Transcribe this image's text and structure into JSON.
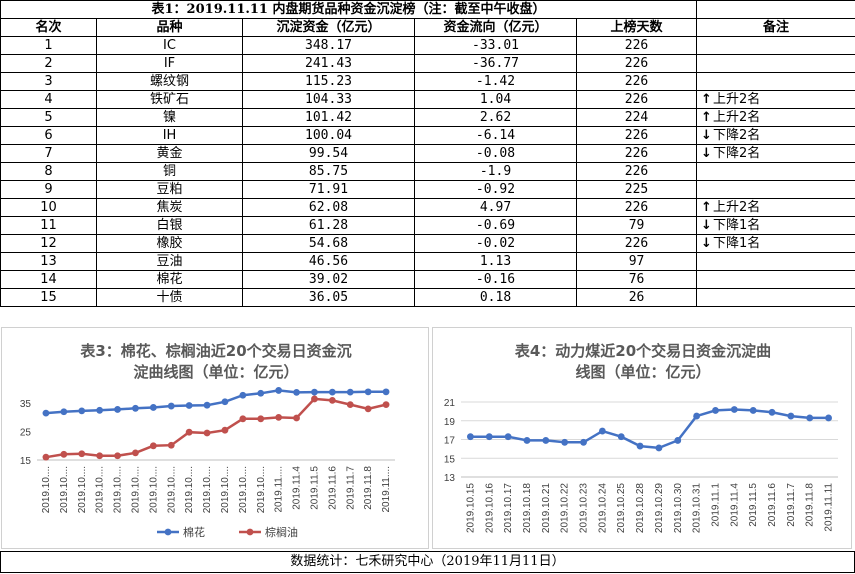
{
  "table": {
    "title": "表1：2019.11.11 内盘期货品种资金沉淀榜（注：截至中午收盘）",
    "headers": [
      "名次",
      "品种",
      "沉淀资金（亿元）",
      "资金流向（亿元）",
      "上榜天数",
      "备注"
    ],
    "rows": [
      {
        "rank": "1",
        "name": "IC",
        "capital": "348.17",
        "flow": "-33.01",
        "days": "226",
        "note": "",
        "dir": ""
      },
      {
        "rank": "2",
        "name": "IF",
        "capital": "241.43",
        "flow": "-36.77",
        "days": "226",
        "note": "",
        "dir": ""
      },
      {
        "rank": "3",
        "name": "螺纹钢",
        "capital": "115.23",
        "flow": "-1.42",
        "days": "226",
        "note": "",
        "dir": ""
      },
      {
        "rank": "4",
        "name": "铁矿石",
        "capital": "104.33",
        "flow": "1.04",
        "days": "226",
        "note": "上升2名",
        "dir": "↑"
      },
      {
        "rank": "5",
        "name": "镍",
        "capital": "101.42",
        "flow": "2.62",
        "days": "224",
        "note": "上升2名",
        "dir": "↑"
      },
      {
        "rank": "6",
        "name": "IH",
        "capital": "100.04",
        "flow": "-6.14",
        "days": "226",
        "note": "下降2名",
        "dir": "↓"
      },
      {
        "rank": "7",
        "name": "黄金",
        "capital": "99.54",
        "flow": "-0.08",
        "days": "226",
        "note": "下降2名",
        "dir": "↓"
      },
      {
        "rank": "8",
        "name": "铜",
        "capital": "85.75",
        "flow": "-1.9",
        "days": "226",
        "note": "",
        "dir": ""
      },
      {
        "rank": "9",
        "name": "豆粕",
        "capital": "71.91",
        "flow": "-0.92",
        "days": "225",
        "note": "",
        "dir": ""
      },
      {
        "rank": "10",
        "name": "焦炭",
        "capital": "62.08",
        "flow": "4.97",
        "days": "226",
        "note": "上升2名",
        "dir": "↑"
      },
      {
        "rank": "11",
        "name": "白银",
        "capital": "61.28",
        "flow": "-0.69",
        "days": "79",
        "note": "下降1名",
        "dir": "↓"
      },
      {
        "rank": "12",
        "name": "橡胶",
        "capital": "54.68",
        "flow": "-0.02",
        "days": "226",
        "note": "下降1名",
        "dir": "↓"
      },
      {
        "rank": "13",
        "name": "豆油",
        "capital": "46.56",
        "flow": "1.13",
        "days": "97",
        "note": "",
        "dir": ""
      },
      {
        "rank": "14",
        "name": "棉花",
        "capital": "39.02",
        "flow": "-0.16",
        "days": "76",
        "note": "",
        "dir": ""
      },
      {
        "rank": "15",
        "name": "十债",
        "capital": "36.05",
        "flow": "0.18",
        "days": "26",
        "note": "",
        "dir": ""
      }
    ]
  },
  "chart_data": [
    {
      "type": "line",
      "title_lines": [
        "表3：棉花、棕榈油近20个交易日资金沉",
        "淀曲线图（单位：亿元）"
      ],
      "categories": [
        "2019.10....",
        "2019.10....",
        "2019.10....",
        "2019.10....",
        "2019.10....",
        "2019.10....",
        "2019.10....",
        "2019.10....",
        "2019.10....",
        "2019.10....",
        "2019.10....",
        "2019.10....",
        "2019.10....",
        "2019.11....",
        "2019.11.4",
        "2019.11.5",
        "2019.11.6",
        "2019.11.7",
        "2019.11.8",
        "2019.11...."
      ],
      "yticks": [
        15,
        25,
        35
      ],
      "ylim": [
        15,
        40
      ],
      "legend_position": "bottom",
      "series": [
        {
          "name": "棉花",
          "color": "#4472C4",
          "values": [
            31.5,
            32.0,
            32.3,
            32.5,
            32.8,
            33.2,
            33.5,
            34.0,
            34.2,
            34.3,
            35.5,
            37.8,
            38.5,
            39.5,
            38.8,
            38.9,
            38.9,
            38.9,
            39.0,
            39.0
          ]
        },
        {
          "name": "棕榈油",
          "color": "#C0504D",
          "values": [
            16.0,
            17.0,
            17.2,
            16.5,
            16.5,
            17.5,
            20.0,
            20.2,
            24.8,
            24.5,
            25.5,
            29.5,
            29.5,
            30.0,
            29.8,
            36.5,
            36.0,
            34.5,
            33.0,
            34.5
          ]
        }
      ]
    },
    {
      "type": "line",
      "title_lines": [
        "表4：动力煤近20个交易日资金沉淀曲",
        "线图（单位：亿元）"
      ],
      "categories": [
        "2019.10.15",
        "2019.10.16",
        "2019.10.17",
        "2019.10.18",
        "2019.10.21",
        "2019.10.22",
        "2019.10.23",
        "2019.10.24",
        "2019.10.25",
        "2019.10.28",
        "2019.10.29",
        "2019.10.30",
        "2019.10.31",
        "2019.11.1",
        "2019.11.4",
        "2019.11.5",
        "2019.11.6",
        "2019.11.7",
        "2019.11.8",
        "2019.11.11"
      ],
      "yticks": [
        13,
        15,
        17,
        19,
        21
      ],
      "ylim": [
        13,
        21
      ],
      "legend_position": "none",
      "series": [
        {
          "color": "#4472C4",
          "values": [
            17.3,
            17.3,
            17.3,
            16.9,
            16.9,
            16.7,
            16.7,
            17.9,
            17.3,
            16.3,
            16.1,
            16.9,
            19.5,
            20.1,
            20.2,
            20.1,
            19.9,
            19.5,
            19.3,
            19.3
          ]
        }
      ]
    }
  ],
  "footer": "数据统计：七禾研究中心（2019年11月11日）"
}
